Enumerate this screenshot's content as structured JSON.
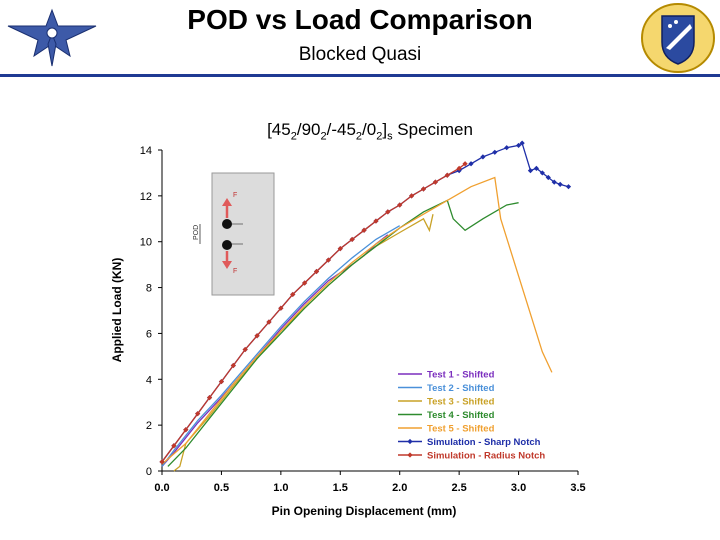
{
  "header": {
    "title": "POD vs Load Comparison",
    "subtitle": "Blocked Quasi"
  },
  "chart_title": {
    "a": "[45",
    "a_sub": "2",
    "b": "/90",
    "b_sub": "2",
    "c": "/-45",
    "c_sub": "2",
    "d": "/0",
    "d_sub": "2",
    "e": "]",
    "e_sub": "s",
    "f": " Specimen"
  },
  "chart_data": {
    "type": "line",
    "title": "[452/902/-452/02] s Specimen",
    "xlabel": "Pin Opening Displacement (mm)",
    "ylabel": "Applied Load (KN)",
    "xlim": [
      0,
      3.5
    ],
    "ylim": [
      0,
      14
    ],
    "x_ticks": [
      "0.0",
      "0.5",
      "1.0",
      "1.5",
      "2.0",
      "2.5",
      "3.0",
      "3.5"
    ],
    "y_ticks": [
      "0",
      "2",
      "4",
      "6",
      "8",
      "10",
      "12",
      "14"
    ],
    "grid": false,
    "legend_position": "bottom-right",
    "inset_labels": {
      "force_top": "F",
      "force_bottom": "F",
      "pod": "POD"
    },
    "series": [
      {
        "name": "Test 1 - Shifted",
        "color": "#7b2fbe",
        "marker": "none",
        "x": [
          0.0,
          0.1,
          0.3,
          0.5,
          0.8,
          1.0,
          1.2,
          1.4,
          1.6,
          1.7,
          1.8,
          1.9
        ],
        "y": [
          0.2,
          0.8,
          2.1,
          3.2,
          5.0,
          6.2,
          7.3,
          8.3,
          9.0,
          9.4,
          9.9,
          10.3
        ]
      },
      {
        "name": "Test 2 - Shifted",
        "color": "#4a90d9",
        "marker": "none",
        "x": [
          0.0,
          0.1,
          0.3,
          0.5,
          0.8,
          1.0,
          1.2,
          1.4,
          1.6,
          1.8,
          2.0
        ],
        "y": [
          0.2,
          0.9,
          2.2,
          3.3,
          5.1,
          6.3,
          7.4,
          8.4,
          9.3,
          10.1,
          10.7
        ]
      },
      {
        "name": "Test 3 - Shifted",
        "color": "#c9a227",
        "marker": "none",
        "x": [
          0.1,
          0.15,
          0.2,
          0.4,
          0.6,
          0.8,
          1.0,
          1.2,
          1.4,
          1.6,
          1.8,
          2.0,
          2.2,
          2.25,
          2.28
        ],
        "y": [
          0.0,
          0.2,
          1.2,
          2.4,
          3.7,
          4.9,
          6.1,
          7.1,
          8.1,
          9.0,
          9.8,
          10.4,
          11.0,
          10.5,
          11.2
        ]
      },
      {
        "name": "Test 4 - Shifted",
        "color": "#2e8b2e",
        "marker": "none",
        "x": [
          0.05,
          0.2,
          0.4,
          0.6,
          0.8,
          1.0,
          1.2,
          1.4,
          1.6,
          1.8,
          2.0,
          2.2,
          2.4,
          2.45,
          2.55,
          2.7,
          2.9,
          3.0
        ],
        "y": [
          0.2,
          1.0,
          2.3,
          3.6,
          4.9,
          6.0,
          7.1,
          8.1,
          9.0,
          9.8,
          10.6,
          11.3,
          11.8,
          11.0,
          10.5,
          11.0,
          11.6,
          11.7
        ]
      },
      {
        "name": "Test 5 - Shifted",
        "color": "#f0a030",
        "marker": "none",
        "x": [
          0.0,
          0.2,
          0.4,
          0.6,
          0.8,
          1.0,
          1.2,
          1.4,
          1.6,
          1.8,
          2.0,
          2.2,
          2.4,
          2.6,
          2.8,
          2.85,
          3.0,
          3.2,
          3.28
        ],
        "y": [
          0.3,
          1.2,
          2.5,
          3.8,
          5.0,
          6.1,
          7.2,
          8.2,
          9.1,
          9.9,
          10.6,
          11.2,
          11.8,
          12.4,
          12.8,
          11.0,
          8.5,
          5.2,
          4.3
        ]
      },
      {
        "name": "Simulation - Sharp Notch",
        "color": "#1f2fa8",
        "marker": "diamond",
        "x": [
          0.0,
          0.1,
          0.2,
          0.3,
          0.4,
          0.5,
          0.6,
          0.7,
          0.8,
          0.9,
          1.0,
          1.1,
          1.2,
          1.3,
          1.4,
          1.5,
          1.6,
          1.7,
          1.8,
          1.9,
          2.0,
          2.1,
          2.2,
          2.3,
          2.4,
          2.5,
          2.6,
          2.7,
          2.8,
          2.9,
          3.0,
          3.03,
          3.1,
          3.15,
          3.2,
          3.25,
          3.3,
          3.35,
          3.42
        ],
        "y": [
          0.4,
          1.1,
          1.8,
          2.5,
          3.2,
          3.9,
          4.6,
          5.3,
          5.9,
          6.5,
          7.1,
          7.7,
          8.2,
          8.7,
          9.2,
          9.7,
          10.1,
          10.5,
          10.9,
          11.3,
          11.6,
          12.0,
          12.3,
          12.6,
          12.9,
          13.1,
          13.4,
          13.7,
          13.9,
          14.1,
          14.2,
          14.3,
          13.1,
          13.2,
          13.0,
          12.8,
          12.6,
          12.5,
          12.4
        ]
      },
      {
        "name": "Simulation - Radius Notch",
        "color": "#c0392b",
        "marker": "diamond",
        "x": [
          0.0,
          0.1,
          0.2,
          0.3,
          0.4,
          0.5,
          0.6,
          0.7,
          0.8,
          0.9,
          1.0,
          1.1,
          1.2,
          1.3,
          1.4,
          1.5,
          1.6,
          1.7,
          1.8,
          1.9,
          2.0,
          2.1,
          2.2,
          2.3,
          2.4,
          2.5,
          2.55
        ],
        "y": [
          0.4,
          1.1,
          1.8,
          2.5,
          3.2,
          3.9,
          4.6,
          5.3,
          5.9,
          6.5,
          7.1,
          7.7,
          8.2,
          8.7,
          9.2,
          9.7,
          10.1,
          10.5,
          10.9,
          11.3,
          11.6,
          12.0,
          12.3,
          12.6,
          12.9,
          13.2,
          13.4
        ]
      }
    ]
  }
}
